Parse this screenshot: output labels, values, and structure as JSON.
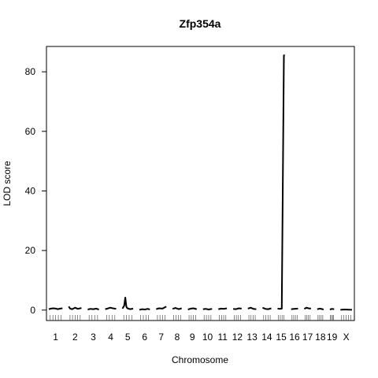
{
  "chart_data": {
    "type": "line",
    "title": "Zfp354a",
    "xlabel": "Chromosome",
    "ylabel": "LOD score",
    "ylim": [
      -3.5,
      88.5
    ],
    "yticks": [
      0,
      20,
      40,
      60,
      80
    ],
    "grid": false,
    "legend": "none",
    "line_color": "#000000",
    "chromosomes": [
      {
        "label": "1",
        "length": 195,
        "x": [
          0,
          30,
          60,
          100,
          130,
          160,
          195
        ],
        "y": [
          0.3,
          0.5,
          0.6,
          0.5,
          0.3,
          0.5,
          0.6
        ]
      },
      {
        "label": "2",
        "length": 182,
        "x": [
          0,
          20,
          50,
          90,
          130,
          182
        ],
        "y": [
          1.2,
          0.5,
          0.3,
          0.8,
          0.4,
          0.7
        ]
      },
      {
        "label": "3",
        "length": 160,
        "x": [
          0,
          40,
          80,
          120,
          160
        ],
        "y": [
          0.2,
          0.4,
          0.3,
          0.5,
          0.2
        ]
      },
      {
        "label": "4",
        "length": 157,
        "x": [
          0,
          30,
          70,
          110,
          157
        ],
        "y": [
          0.3,
          0.5,
          0.8,
          0.6,
          0.4
        ]
      },
      {
        "label": "5",
        "length": 152,
        "x": [
          0,
          25,
          40,
          55,
          70,
          110,
          152
        ],
        "y": [
          0.5,
          1.5,
          4.2,
          1.2,
          0.6,
          0.3,
          0.5
        ]
      },
      {
        "label": "6",
        "length": 150,
        "x": [
          0,
          40,
          80,
          120,
          150
        ],
        "y": [
          0.1,
          0.3,
          0.2,
          0.4,
          0.2
        ]
      },
      {
        "label": "7",
        "length": 145,
        "x": [
          0,
          40,
          90,
          145
        ],
        "y": [
          0.3,
          0.6,
          0.5,
          1.2
        ]
      },
      {
        "label": "8",
        "length": 130,
        "x": [
          0,
          40,
          90,
          130
        ],
        "y": [
          0.4,
          0.7,
          0.3,
          0.6
        ]
      },
      {
        "label": "9",
        "length": 125,
        "x": [
          0,
          40,
          80,
          125
        ],
        "y": [
          0.2,
          0.5,
          0.6,
          0.3
        ]
      },
      {
        "label": "10",
        "length": 130,
        "x": [
          0,
          40,
          80,
          130
        ],
        "y": [
          0.3,
          0.4,
          0.2,
          0.4
        ]
      },
      {
        "label": "11",
        "length": 122,
        "x": [
          0,
          40,
          80,
          122
        ],
        "y": [
          0.3,
          0.5,
          0.4,
          0.6
        ]
      },
      {
        "label": "12",
        "length": 120,
        "x": [
          0,
          40,
          80,
          120
        ],
        "y": [
          0.4,
          0.3,
          0.6,
          0.5
        ]
      },
      {
        "label": "13",
        "length": 120,
        "x": [
          0,
          40,
          80,
          120
        ],
        "y": [
          0.5,
          0.8,
          0.4,
          0.3
        ]
      },
      {
        "label": "14",
        "length": 125,
        "x": [
          0,
          40,
          80,
          125
        ],
        "y": [
          0.8,
          0.4,
          0.3,
          0.6
        ]
      },
      {
        "label": "15",
        "length": 104,
        "x": [
          0,
          30,
          60,
          90,
          104
        ],
        "y": [
          0.5,
          0.4,
          0.5,
          85.5,
          85.5
        ]
      },
      {
        "label": "16",
        "length": 98,
        "x": [
          0,
          40,
          98
        ],
        "y": [
          0.3,
          0.4,
          0.5
        ]
      },
      {
        "label": "17",
        "length": 95,
        "x": [
          0,
          30,
          60,
          95
        ],
        "y": [
          0.4,
          0.8,
          0.6,
          0.5
        ]
      },
      {
        "label": "18",
        "length": 91,
        "x": [
          0,
          40,
          91
        ],
        "y": [
          0.3,
          0.5,
          0.2
        ]
      },
      {
        "label": "19",
        "length": 61,
        "x": [
          0,
          30,
          61
        ],
        "y": [
          0.2,
          0.4,
          0.3
        ]
      },
      {
        "label": "X",
        "length": 166,
        "x": [
          0,
          60,
          120,
          166
        ],
        "y": [
          0.1,
          0.2,
          0.15,
          0.1
        ]
      }
    ]
  }
}
